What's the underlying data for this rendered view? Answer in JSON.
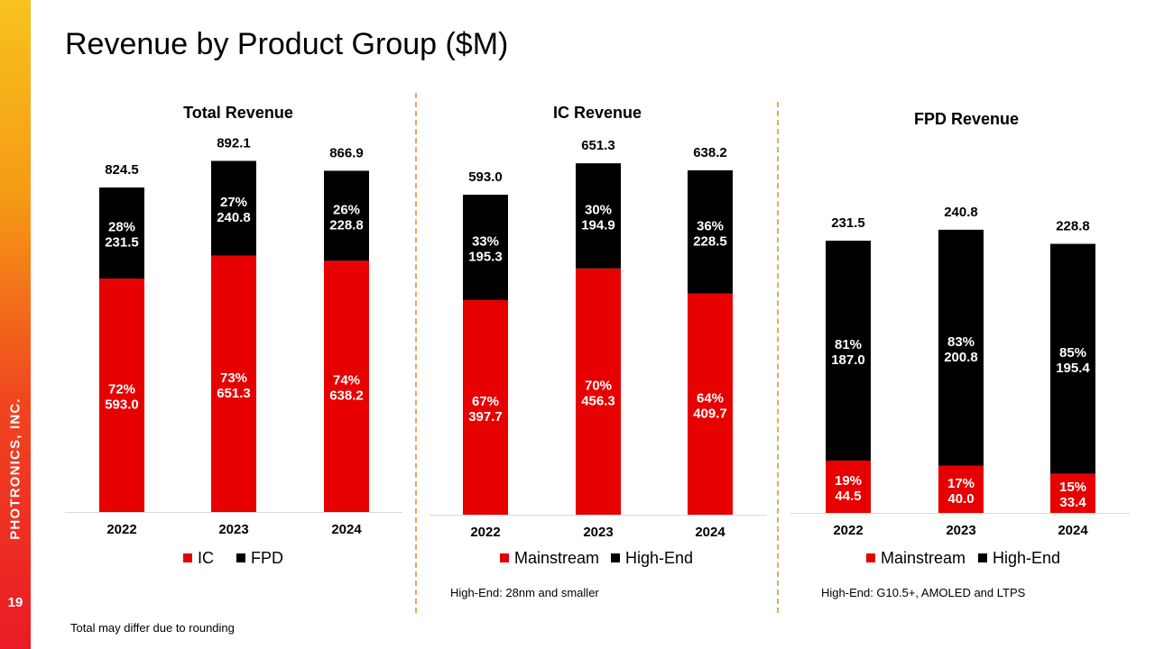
{
  "slide": {
    "title": "Revenue by Product Group ($M)",
    "company": "PHOTRONICS, INC.",
    "page_number": "19",
    "footnote": "Total may differ due to rounding",
    "notes": {
      "ic": "High-End: 28nm and smaller",
      "fpd": "High-End: G10.5+, AMOLED and LTPS"
    }
  },
  "colors": {
    "red": "#e60000",
    "black": "#000000",
    "accent_divider": "#e7a65a"
  },
  "chart_data": [
    {
      "type": "bar",
      "stacked": true,
      "title": "Total Revenue",
      "categories": [
        "2022",
        "2023",
        "2024"
      ],
      "totals": [
        "824.5",
        "892.1",
        "866.9"
      ],
      "series": [
        {
          "name": "IC",
          "color": "#e60000",
          "values": [
            593.0,
            651.3,
            638.2
          ],
          "labels": [
            [
              "72%",
              "593.0"
            ],
            [
              "73%",
              "651.3"
            ],
            [
              "74%",
              "638.2"
            ]
          ]
        },
        {
          "name": "FPD",
          "color": "#000000",
          "values": [
            231.5,
            240.8,
            228.8
          ],
          "labels": [
            [
              "28%",
              "231.5"
            ],
            [
              "27%",
              "240.8"
            ],
            [
              "26%",
              "228.8"
            ]
          ]
        }
      ],
      "legend_position": "bottom"
    },
    {
      "type": "bar",
      "stacked": true,
      "title": "IC Revenue",
      "categories": [
        "2022",
        "2023",
        "2024"
      ],
      "totals": [
        "593.0",
        "651.3",
        "638.2"
      ],
      "series": [
        {
          "name": "Mainstream",
          "color": "#e60000",
          "values": [
            397.7,
            456.3,
            409.7
          ],
          "labels": [
            [
              "67%",
              "397.7"
            ],
            [
              "70%",
              "456.3"
            ],
            [
              "64%",
              "409.7"
            ]
          ]
        },
        {
          "name": "High-End",
          "color": "#000000",
          "values": [
            195.3,
            194.9,
            228.5
          ],
          "labels": [
            [
              "33%",
              "195.3"
            ],
            [
              "30%",
              "194.9"
            ],
            [
              "36%",
              "228.5"
            ]
          ]
        }
      ],
      "legend_position": "bottom"
    },
    {
      "type": "bar",
      "stacked": true,
      "title": "FPD Revenue",
      "categories": [
        "2022",
        "2023",
        "2024"
      ],
      "totals": [
        "231.5",
        "240.8",
        "228.8"
      ],
      "series": [
        {
          "name": "Mainstream",
          "color": "#e60000",
          "values": [
            44.5,
            40.0,
            33.4
          ],
          "labels": [
            [
              "19%",
              "44.5"
            ],
            [
              "17%",
              "40.0"
            ],
            [
              "15%",
              "33.4"
            ]
          ]
        },
        {
          "name": "High-End",
          "color": "#000000",
          "values": [
            187.0,
            200.8,
            195.4
          ],
          "labels": [
            [
              "81%",
              "187.0"
            ],
            [
              "83%",
              "200.8"
            ],
            [
              "85%",
              "195.4"
            ]
          ]
        }
      ],
      "legend_position": "bottom"
    }
  ]
}
